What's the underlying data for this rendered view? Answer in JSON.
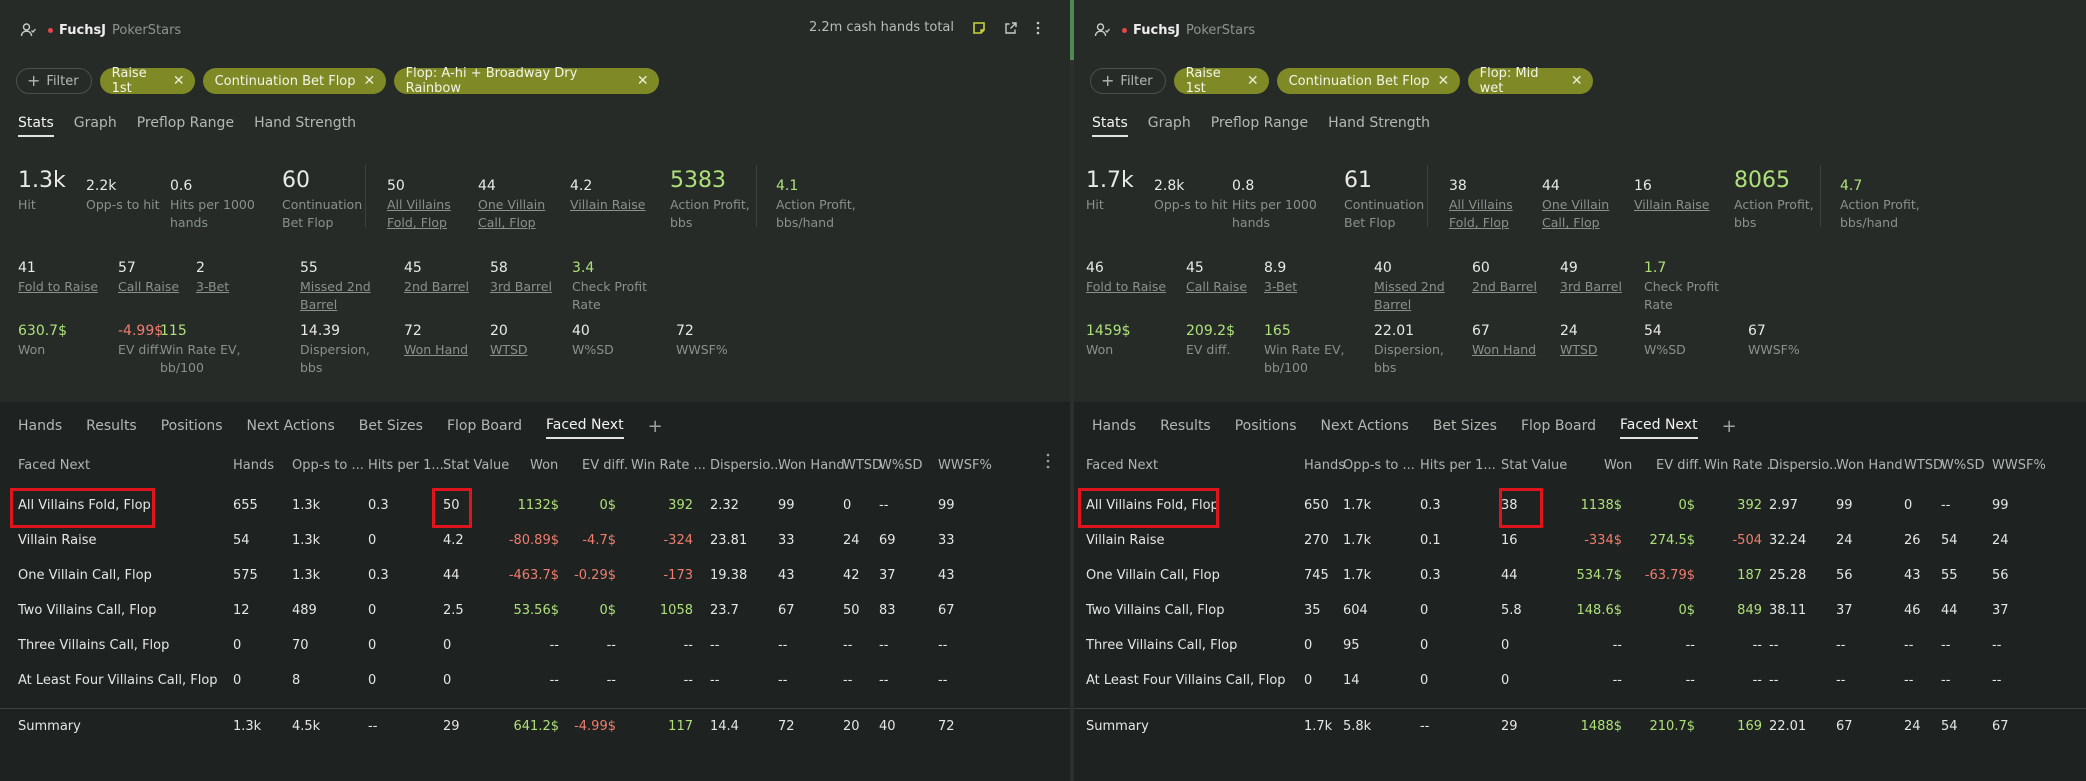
{
  "panels": [
    {
      "user": "FuchsJ",
      "site": "PokerStars",
      "hands_total": "2.2m cash hands total",
      "filter_label": "Filter",
      "chips": [
        "Raise 1st",
        "Continuation Bet Flop",
        "Flop: A-hi + Broadway Dry Rainbow"
      ],
      "tabs": [
        "Stats",
        "Graph",
        "Preflop Range",
        "Hand Strength"
      ],
      "stats_row1": [
        {
          "v": "1.3k",
          "l": "Hit"
        },
        {
          "v": "2.2k",
          "l": "Opp-s to hit"
        },
        {
          "v": "0.6",
          "l": "Hits per 1000 hands"
        },
        {
          "v": "60",
          "l": "Continuation Bet Flop"
        },
        {
          "v": "50",
          "l": "All Villains Fold, Flop"
        },
        {
          "v": "44",
          "l": "One Villain Call, Flop"
        },
        {
          "v": "4.2",
          "l": "Villain Raise"
        },
        {
          "v": "5383",
          "l": "Action Profit, bbs"
        },
        {
          "v": "4.1",
          "l": "Action Profit, bbs/hand"
        }
      ],
      "stats_row2": [
        {
          "v": "41",
          "l": "Fold to Raise"
        },
        {
          "v": "57",
          "l": "Call Raise"
        },
        {
          "v": "2",
          "l": "3-Bet"
        },
        {
          "v": "55",
          "l": "Missed 2nd Barrel"
        },
        {
          "v": "45",
          "l": "2nd Barrel"
        },
        {
          "v": "58",
          "l": "3rd Barrel"
        },
        {
          "v": "3.4",
          "l": "Check Profit Rate"
        }
      ],
      "stats_row3": [
        {
          "v": "630.7$",
          "l": "Won"
        },
        {
          "v": "-4.99$",
          "l": "EV diff."
        },
        {
          "v": "115",
          "l": "Win Rate EV, bb/100"
        },
        {
          "v": "14.39",
          "l": "Dispersion, bbs"
        },
        {
          "v": "72",
          "l": "Won Hand"
        },
        {
          "v": "20",
          "l": "WTSD"
        },
        {
          "v": "40",
          "l": "W%SD"
        },
        {
          "v": "72",
          "l": "WWSF%"
        }
      ],
      "tabs2": [
        "Hands",
        "Results",
        "Positions",
        "Next Actions",
        "Bet Sizes",
        "Flop Board",
        "Faced Next"
      ],
      "columns": [
        "Faced Next",
        "Hands",
        "Opp-s to ...",
        "Hits per 1...",
        "Stat Value",
        "Won",
        "EV diff.",
        "Win Rate ...",
        "Dispersio...",
        "Won Hand",
        "WTSD",
        "W%SD",
        "WWSF%"
      ],
      "rows": [
        [
          "All Villains Fold, Flop",
          "655",
          "1.3k",
          "0.3",
          "50",
          "1132$",
          "0$",
          "392",
          "2.32",
          "99",
          "0",
          "--",
          "99"
        ],
        [
          "Villain Raise",
          "54",
          "1.3k",
          "0",
          "4.2",
          "-80.89$",
          "-4.7$",
          "-324",
          "23.81",
          "33",
          "24",
          "69",
          "33"
        ],
        [
          "One Villain Call, Flop",
          "575",
          "1.3k",
          "0.3",
          "44",
          "-463.7$",
          "-0.29$",
          "-173",
          "19.38",
          "43",
          "42",
          "37",
          "43"
        ],
        [
          "Two Villains Call, Flop",
          "12",
          "489",
          "0",
          "2.5",
          "53.56$",
          "0$",
          "1058",
          "23.7",
          "67",
          "50",
          "83",
          "67"
        ],
        [
          "Three Villains Call, Flop",
          "0",
          "70",
          "0",
          "0",
          "--",
          "--",
          "--",
          "--",
          "--",
          "--",
          "--",
          "--"
        ],
        [
          "At Least Four Villains Call, Flop",
          "0",
          "8",
          "0",
          "0",
          "--",
          "--",
          "--",
          "--",
          "--",
          "--",
          "--",
          "--"
        ]
      ],
      "summary": [
        "Summary",
        "1.3k",
        "4.5k",
        "--",
        "29",
        "641.2$",
        "-4.99$",
        "117",
        "14.4",
        "72",
        "20",
        "40",
        "72"
      ]
    },
    {
      "user": "FuchsJ",
      "site": "PokerStars",
      "filter_label": "Filter",
      "chips": [
        "Raise 1st",
        "Continuation Bet Flop",
        "Flop: Mid wet"
      ],
      "tabs": [
        "Stats",
        "Graph",
        "Preflop Range",
        "Hand Strength"
      ],
      "stats_row1": [
        {
          "v": "1.7k",
          "l": "Hit"
        },
        {
          "v": "2.8k",
          "l": "Opp-s to hit"
        },
        {
          "v": "0.8",
          "l": "Hits per 1000 hands"
        },
        {
          "v": "61",
          "l": "Continuation Bet Flop"
        },
        {
          "v": "38",
          "l": "All Villains Fold, Flop"
        },
        {
          "v": "44",
          "l": "One Villain Call, Flop"
        },
        {
          "v": "16",
          "l": "Villain Raise"
        },
        {
          "v": "8065",
          "l": "Action Profit, bbs"
        },
        {
          "v": "4.7",
          "l": "Action Profit, bbs/hand"
        }
      ],
      "stats_row2": [
        {
          "v": "46",
          "l": "Fold to Raise"
        },
        {
          "v": "45",
          "l": "Call Raise"
        },
        {
          "v": "8.9",
          "l": "3-Bet"
        },
        {
          "v": "40",
          "l": "Missed 2nd Barrel"
        },
        {
          "v": "60",
          "l": "2nd Barrel"
        },
        {
          "v": "49",
          "l": "3rd Barrel"
        },
        {
          "v": "1.7",
          "l": "Check Profit Rate"
        }
      ],
      "stats_row3": [
        {
          "v": "1459$",
          "l": "Won"
        },
        {
          "v": "209.2$",
          "l": "EV diff."
        },
        {
          "v": "165",
          "l": "Win Rate EV, bb/100"
        },
        {
          "v": "22.01",
          "l": "Dispersion, bbs"
        },
        {
          "v": "67",
          "l": "Won Hand"
        },
        {
          "v": "24",
          "l": "WTSD"
        },
        {
          "v": "54",
          "l": "W%SD"
        },
        {
          "v": "67",
          "l": "WWSF%"
        }
      ],
      "tabs2": [
        "Hands",
        "Results",
        "Positions",
        "Next Actions",
        "Bet Sizes",
        "Flop Board",
        "Faced Next"
      ],
      "columns": [
        "Faced Next",
        "Hands",
        "Opp-s to ...",
        "Hits per 1...",
        "Stat Value",
        "Won",
        "EV diff.",
        "Win Rate ...",
        "Dispersio...",
        "Won Hand",
        "WTSD",
        "W%SD",
        "WWSF%"
      ],
      "rows": [
        [
          "All Villains Fold, Flop",
          "650",
          "1.7k",
          "0.3",
          "38",
          "1138$",
          "0$",
          "392",
          "2.97",
          "99",
          "0",
          "--",
          "99"
        ],
        [
          "Villain Raise",
          "270",
          "1.7k",
          "0.1",
          "16",
          "-334$",
          "274.5$",
          "-504",
          "32.24",
          "24",
          "26",
          "54",
          "24"
        ],
        [
          "One Villain Call, Flop",
          "745",
          "1.7k",
          "0.3",
          "44",
          "534.7$",
          "-63.79$",
          "187",
          "25.28",
          "56",
          "43",
          "55",
          "56"
        ],
        [
          "Two Villains Call, Flop",
          "35",
          "604",
          "0",
          "5.8",
          "148.6$",
          "0$",
          "849",
          "38.11",
          "37",
          "46",
          "44",
          "37"
        ],
        [
          "Three Villains Call, Flop",
          "0",
          "95",
          "0",
          "0",
          "--",
          "--",
          "--",
          "--",
          "--",
          "--",
          "--",
          "--"
        ],
        [
          "At Least Four Villains Call, Flop",
          "0",
          "14",
          "0",
          "0",
          "--",
          "--",
          "--",
          "--",
          "--",
          "--",
          "--",
          "--"
        ]
      ],
      "summary": [
        "Summary",
        "1.7k",
        "5.8k",
        "--",
        "29",
        "1488$",
        "210.7$",
        "169",
        "22.01",
        "67",
        "24",
        "54",
        "67"
      ]
    }
  ],
  "colors": {
    "accent_chip": "#7f8a26",
    "positive": "#aee07a",
    "negative": "#ef7d6f",
    "highlight": "#e0141c"
  },
  "icons": [
    "user-icon",
    "note-icon",
    "export-icon",
    "more-vertical-icon",
    "plus-icon",
    "close-icon"
  ]
}
